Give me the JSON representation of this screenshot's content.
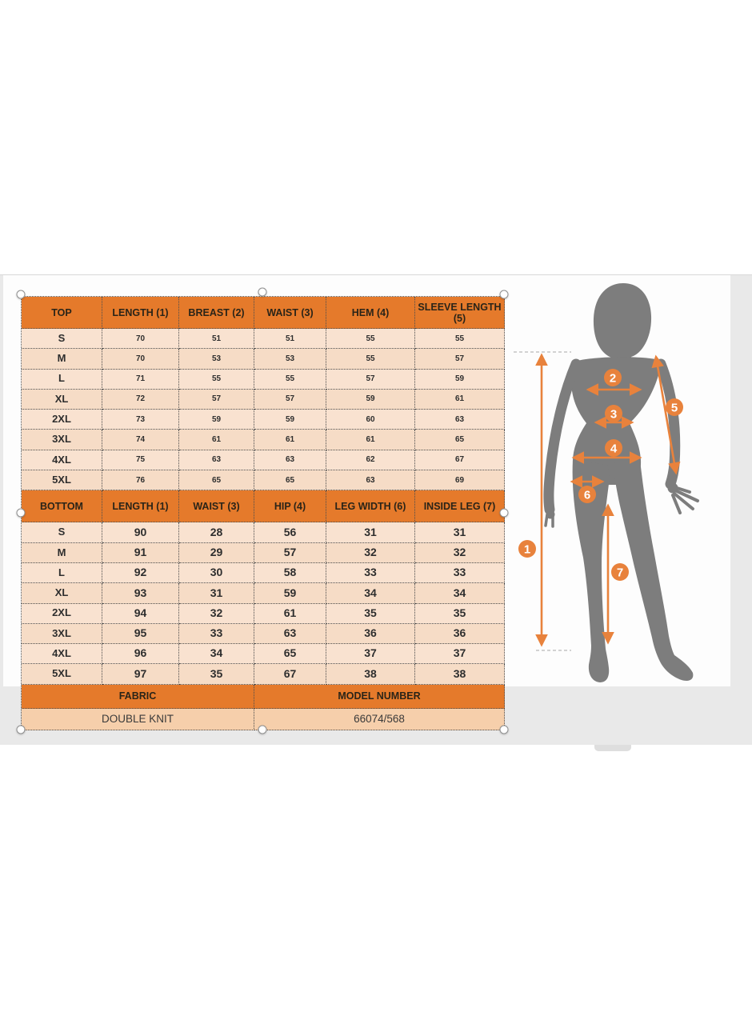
{
  "top_table": {
    "columns": [
      "TOP",
      "LENGTH (1)",
      "BREAST (2)",
      "WAIST (3)",
      "HEM (4)",
      "SLEEVE LENGTH (5)"
    ],
    "rows": [
      {
        "size": "S",
        "values": [
          "70",
          "51",
          "51",
          "55",
          "55"
        ]
      },
      {
        "size": "M",
        "values": [
          "70",
          "53",
          "53",
          "55",
          "57"
        ]
      },
      {
        "size": "L",
        "values": [
          "71",
          "55",
          "55",
          "57",
          "59"
        ]
      },
      {
        "size": "XL",
        "values": [
          "72",
          "57",
          "57",
          "59",
          "61"
        ]
      },
      {
        "size": "2XL",
        "values": [
          "73",
          "59",
          "59",
          "60",
          "63"
        ]
      },
      {
        "size": "3XL",
        "values": [
          "74",
          "61",
          "61",
          "61",
          "65"
        ]
      },
      {
        "size": "4XL",
        "values": [
          "75",
          "63",
          "63",
          "62",
          "67"
        ]
      },
      {
        "size": "5XL",
        "values": [
          "76",
          "65",
          "65",
          "63",
          "69"
        ]
      }
    ]
  },
  "bottom_table": {
    "columns": [
      "BOTTOM",
      "LENGTH (1)",
      "WAIST (3)",
      "HIP (4)",
      "LEG WIDTH (6)",
      "INSIDE LEG (7)"
    ],
    "rows": [
      {
        "size": "S",
        "values": [
          "90",
          "28",
          "56",
          "31",
          "31"
        ]
      },
      {
        "size": "M",
        "values": [
          "91",
          "29",
          "57",
          "32",
          "32"
        ]
      },
      {
        "size": "L",
        "values": [
          "92",
          "30",
          "58",
          "33",
          "33"
        ]
      },
      {
        "size": "XL",
        "values": [
          "93",
          "31",
          "59",
          "34",
          "34"
        ]
      },
      {
        "size": "2XL",
        "values": [
          "94",
          "32",
          "61",
          "35",
          "35"
        ]
      },
      {
        "size": "3XL",
        "values": [
          "95",
          "33",
          "63",
          "36",
          "36"
        ]
      },
      {
        "size": "4XL",
        "values": [
          "96",
          "34",
          "65",
          "37",
          "37"
        ]
      },
      {
        "size": "5XL",
        "values": [
          "97",
          "35",
          "67",
          "38",
          "38"
        ]
      }
    ]
  },
  "footer": {
    "fabric_label": "FABRIC",
    "fabric_value": "DOUBLE KNIT",
    "model_label": "MODEL NUMBER",
    "model_value": "66074/568"
  },
  "figure": {
    "markers": [
      "1",
      "2",
      "3",
      "4",
      "5",
      "6",
      "7"
    ]
  },
  "colors": {
    "header_orange": "#e57a2b",
    "row_peach": "#f8dfca",
    "footer_peach": "#f6cfab",
    "canvas_gray": "#e9e9e9",
    "figure_gray": "#7d7d7d",
    "accent_orange": "#e8823c"
  }
}
